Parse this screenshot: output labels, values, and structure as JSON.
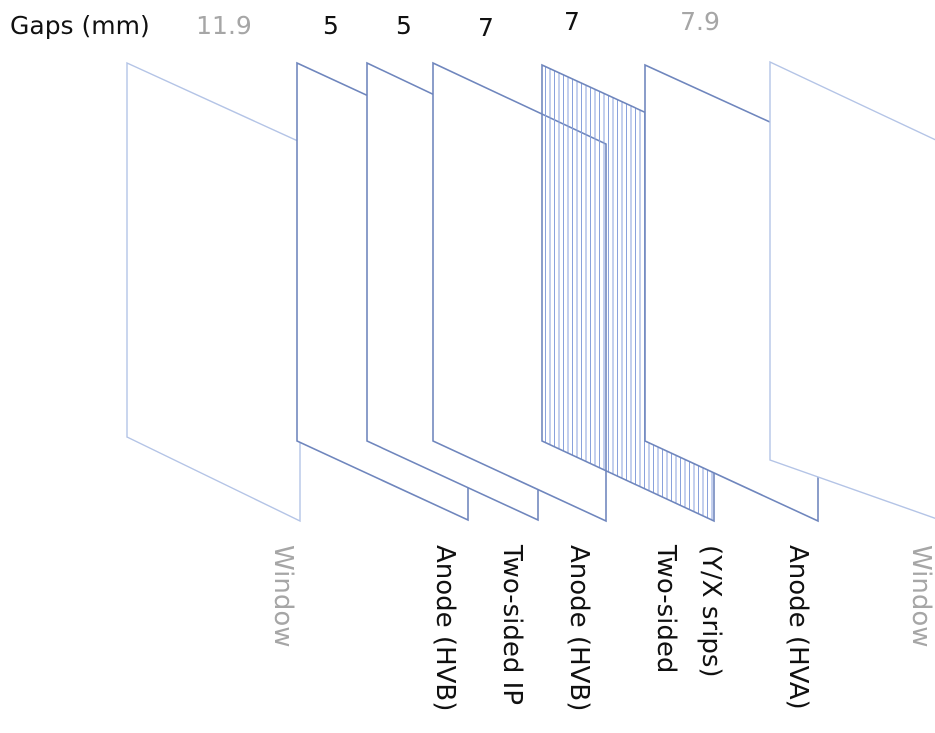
{
  "header": {
    "gaps_label": "Gaps (mm)",
    "gaps": [
      {
        "value": "11.9",
        "muted": true
      },
      {
        "value": "5",
        "muted": false
      },
      {
        "value": "5",
        "muted": false
      },
      {
        "value": "7",
        "muted": false
      },
      {
        "value": "7",
        "muted": false
      },
      {
        "value": "7.9",
        "muted": true
      }
    ]
  },
  "planes": [
    {
      "kind": "window",
      "label_lines": [
        "Window"
      ],
      "muted": true,
      "striped": false
    },
    {
      "kind": "anode",
      "label_lines": [
        "Anode (HVB)"
      ],
      "muted": false,
      "striped": false
    },
    {
      "kind": "readout",
      "label_lines": [
        "Two-sided IP"
      ],
      "muted": false,
      "striped": false
    },
    {
      "kind": "anode",
      "label_lines": [
        "Anode (HVB)"
      ],
      "muted": false,
      "striped": false
    },
    {
      "kind": "readout",
      "label_lines": [
        "Two-sided",
        "(Y/X srips)"
      ],
      "muted": false,
      "striped": true
    },
    {
      "kind": "anode",
      "label_lines": [
        "Anode (HVA)"
      ],
      "muted": false,
      "striped": false
    },
    {
      "kind": "window",
      "label_lines": [
        "Window"
      ],
      "muted": true,
      "striped": false
    }
  ],
  "colors": {
    "text": "#111111",
    "muted_text": "#a6a6a6",
    "plane_stroke": "#6f86bd",
    "muted_stroke": "#b4c4e6",
    "stripe": "#8aa2dc"
  }
}
